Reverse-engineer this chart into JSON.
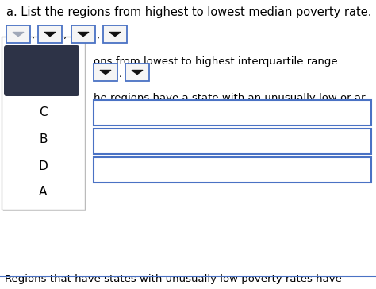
{
  "title_a": "a. List the regions from highest to lowest median poverty rate.",
  "text_partial_b": "ons from lowest to highest interquartile range.",
  "text_partial_c": "he regions have a state with an unusually low or ar",
  "bottom_text": "Regions that have states with unusually low poverty rates have",
  "bg_color": "#ffffff",
  "dropdown_bg": "#f5f5f5",
  "dropdown_border": "#4a72c4",
  "arrow_color_light": "#a0a8b8",
  "arrow_color_dark": "#111111",
  "overlay_bg": "#ffffff",
  "overlay_border": "#bbbbbb",
  "dark_rect_color": "#2d3347",
  "input_box_border": "#4a72c4",
  "input_box_bg": "#ffffff",
  "font_size_title": 10.5,
  "font_size_labels": 9.5,
  "font_size_overlay_labels": 10
}
